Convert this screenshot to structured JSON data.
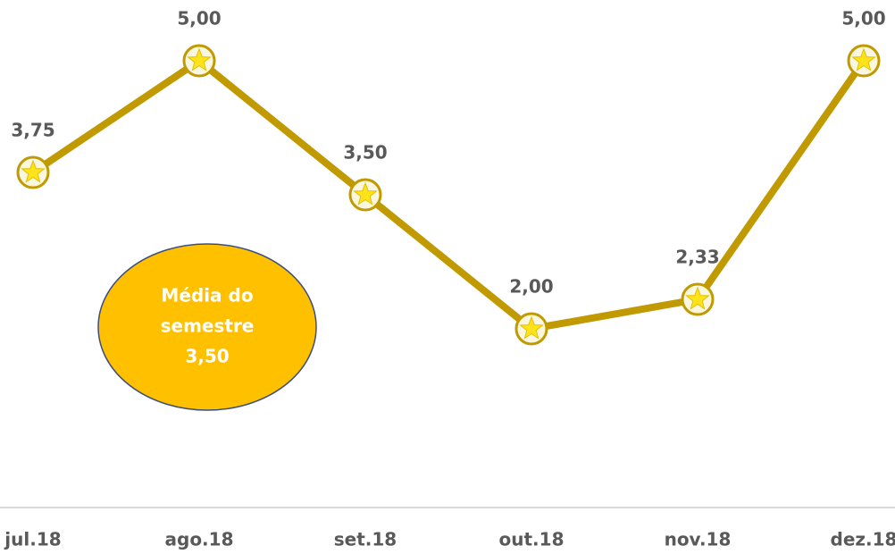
{
  "chart_data": {
    "type": "line",
    "categories": [
      "jul.18",
      "ago.18",
      "set.18",
      "out.18",
      "nov.18",
      "dez.18"
    ],
    "values": [
      3.75,
      5.0,
      3.5,
      2.0,
      2.33,
      5.0
    ],
    "value_labels": [
      "3,75",
      "5,00",
      "3,50",
      "2,00",
      "2,33",
      "5,00"
    ],
    "color": "#c09a00",
    "marker_color": "#ffe31a",
    "ylim": [
      0,
      5.68
    ],
    "annotation": {
      "lines": [
        "Média do",
        "semestre",
        "3,50"
      ],
      "color": "#ffc000"
    }
  }
}
